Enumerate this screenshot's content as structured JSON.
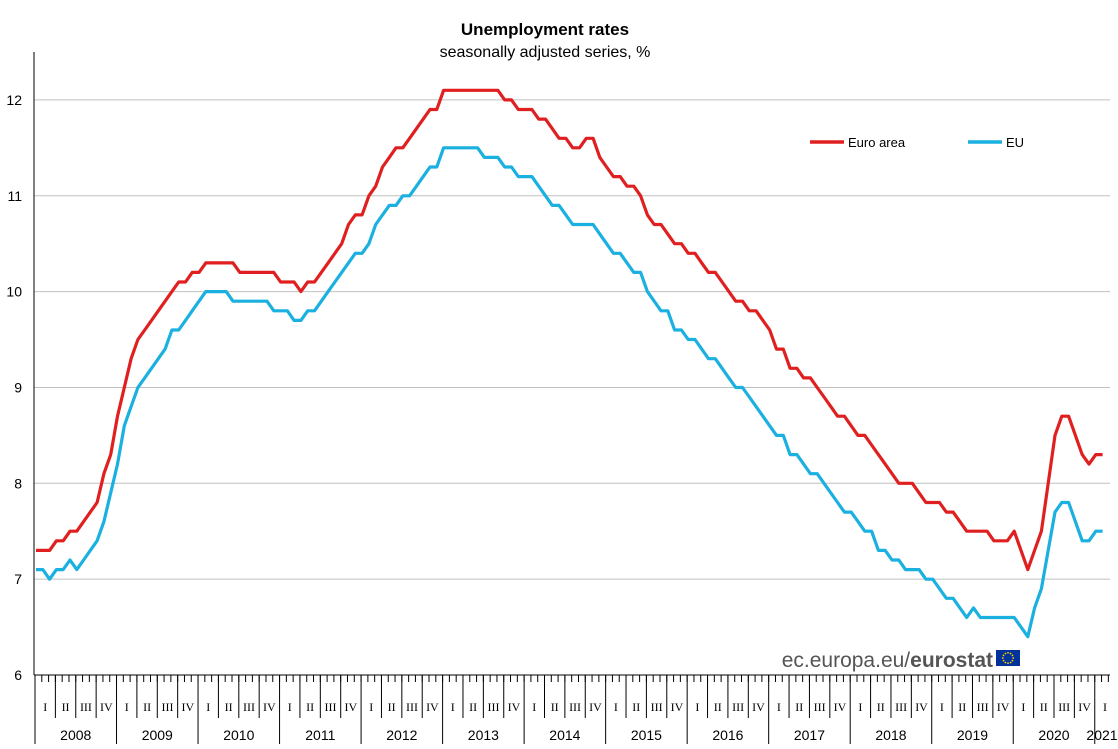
{
  "chart_data": {
    "type": "line",
    "title": "Unemployment rates",
    "subtitle": "seasonally adjusted series, %",
    "x_start": "2008-01",
    "x_end": "2021-01",
    "x_frequency": "monthly",
    "ylim": [
      6,
      12.5
    ],
    "yticks": [
      "6",
      "7",
      "8",
      "9",
      "10",
      "11",
      "12"
    ],
    "quarter_labels": [
      "I",
      "II",
      "III",
      "IV"
    ],
    "years": [
      "2008",
      "2009",
      "2010",
      "2011",
      "2012",
      "2013",
      "2014",
      "2015",
      "2016",
      "2017",
      "2018",
      "2019",
      "2020",
      "2021"
    ],
    "grid": true,
    "legend_position": "top-right",
    "series": [
      {
        "name": "Euro area",
        "color": "#e02020",
        "values": [
          7.3,
          7.3,
          7.3,
          7.4,
          7.4,
          7.5,
          7.5,
          7.6,
          7.7,
          7.8,
          8.1,
          8.3,
          8.7,
          9.0,
          9.3,
          9.5,
          9.6,
          9.7,
          9.8,
          9.9,
          10.0,
          10.1,
          10.1,
          10.2,
          10.2,
          10.3,
          10.3,
          10.3,
          10.3,
          10.3,
          10.2,
          10.2,
          10.2,
          10.2,
          10.2,
          10.2,
          10.1,
          10.1,
          10.1,
          10.0,
          10.1,
          10.1,
          10.2,
          10.3,
          10.4,
          10.5,
          10.7,
          10.8,
          10.8,
          11.0,
          11.1,
          11.3,
          11.4,
          11.5,
          11.5,
          11.6,
          11.7,
          11.8,
          11.9,
          11.9,
          12.1,
          12.1,
          12.1,
          12.1,
          12.1,
          12.1,
          12.1,
          12.1,
          12.1,
          12.0,
          12.0,
          11.9,
          11.9,
          11.9,
          11.8,
          11.8,
          11.7,
          11.6,
          11.6,
          11.5,
          11.5,
          11.6,
          11.6,
          11.4,
          11.3,
          11.2,
          11.2,
          11.1,
          11.1,
          11.0,
          10.8,
          10.7,
          10.7,
          10.6,
          10.5,
          10.5,
          10.4,
          10.4,
          10.3,
          10.2,
          10.2,
          10.1,
          10.0,
          9.9,
          9.9,
          9.8,
          9.8,
          9.7,
          9.6,
          9.4,
          9.4,
          9.2,
          9.2,
          9.1,
          9.1,
          9.0,
          8.9,
          8.8,
          8.7,
          8.7,
          8.6,
          8.5,
          8.5,
          8.4,
          8.3,
          8.2,
          8.1,
          8.0,
          8.0,
          8.0,
          7.9,
          7.8,
          7.8,
          7.8,
          7.7,
          7.7,
          7.6,
          7.5,
          7.5,
          7.5,
          7.5,
          7.4,
          7.4,
          7.4,
          7.5,
          7.3,
          7.1,
          7.3,
          7.5,
          8.0,
          8.5,
          8.7,
          8.7,
          8.5,
          8.3,
          8.2,
          8.3,
          8.3
        ]
      },
      {
        "name": "EU",
        "color": "#1ab0e0",
        "values": [
          7.1,
          7.1,
          7.0,
          7.1,
          7.1,
          7.2,
          7.1,
          7.2,
          7.3,
          7.4,
          7.6,
          7.9,
          8.2,
          8.6,
          8.8,
          9.0,
          9.1,
          9.2,
          9.3,
          9.4,
          9.6,
          9.6,
          9.7,
          9.8,
          9.9,
          10.0,
          10.0,
          10.0,
          10.0,
          9.9,
          9.9,
          9.9,
          9.9,
          9.9,
          9.9,
          9.8,
          9.8,
          9.8,
          9.7,
          9.7,
          9.8,
          9.8,
          9.9,
          10.0,
          10.1,
          10.2,
          10.3,
          10.4,
          10.4,
          10.5,
          10.7,
          10.8,
          10.9,
          10.9,
          11.0,
          11.0,
          11.1,
          11.2,
          11.3,
          11.3,
          11.5,
          11.5,
          11.5,
          11.5,
          11.5,
          11.5,
          11.4,
          11.4,
          11.4,
          11.3,
          11.3,
          11.2,
          11.2,
          11.2,
          11.1,
          11.0,
          10.9,
          10.9,
          10.8,
          10.7,
          10.7,
          10.7,
          10.7,
          10.6,
          10.5,
          10.4,
          10.4,
          10.3,
          10.2,
          10.2,
          10.0,
          9.9,
          9.8,
          9.8,
          9.6,
          9.6,
          9.5,
          9.5,
          9.4,
          9.3,
          9.3,
          9.2,
          9.1,
          9.0,
          9.0,
          8.9,
          8.8,
          8.7,
          8.6,
          8.5,
          8.5,
          8.3,
          8.3,
          8.2,
          8.1,
          8.1,
          8.0,
          7.9,
          7.8,
          7.7,
          7.7,
          7.6,
          7.5,
          7.5,
          7.3,
          7.3,
          7.2,
          7.2,
          7.1,
          7.1,
          7.1,
          7.0,
          7.0,
          6.9,
          6.8,
          6.8,
          6.7,
          6.6,
          6.7,
          6.6,
          6.6,
          6.6,
          6.6,
          6.6,
          6.6,
          6.5,
          6.4,
          6.7,
          6.9,
          7.3,
          7.7,
          7.8,
          7.8,
          7.6,
          7.4,
          7.4,
          7.5,
          7.5
        ]
      }
    ]
  },
  "watermark": {
    "prefix": "ec.europa.eu/",
    "brand": "eurostat",
    "flag_color": "#003399",
    "star_color": "#ffcc00"
  },
  "colors": {
    "grid": "#c0c0c0",
    "axis": "#000000"
  }
}
